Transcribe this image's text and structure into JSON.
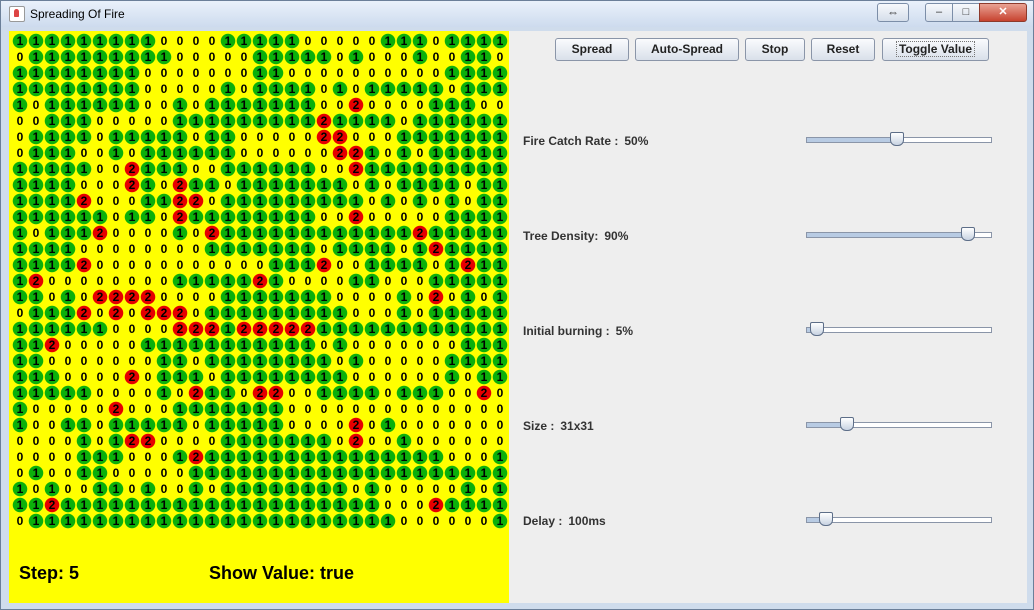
{
  "window": {
    "title": "Spreading Of Fire",
    "resize_glyph": "⇔",
    "minimize_glyph": "–",
    "maximize_glyph": "□",
    "close_glyph": "✕"
  },
  "toolbar": {
    "spread": "Spread",
    "auto_spread": "Auto-Spread",
    "stop": "Stop",
    "reset": "Reset",
    "toggle_value": "Toggle Value"
  },
  "settings": {
    "fire_catch_rate": {
      "label": "Fire Catch Rate :",
      "value": "50%",
      "fraction": 0.5
    },
    "tree_density": {
      "label": "Tree Density:",
      "value": "90%",
      "fraction": 0.9
    },
    "initial_burning": {
      "label": "Initial burning :",
      "value": "5%",
      "fraction": 0.05
    },
    "size": {
      "label": "Size :",
      "value": "31x31",
      "fraction": 0.22
    },
    "delay": {
      "label": "Delay :",
      "value": "100ms",
      "fraction": 0.1
    }
  },
  "status": {
    "step": "Step: 5",
    "show_value": "Show Value: true"
  },
  "colors": {
    "grid_background": "#ffff00",
    "tree": "#0bb00b",
    "burning": "#e60000"
  },
  "grid": [
    "1111111110000111110000011101111",
    "0111111111000001111101000100110",
    "1111111100000001100000000001111",
    "1111111100000101111010111110111",
    "1011111100101111111002000011100",
    "0011100000111111111211110111111",
    "0111101111101100000220001111111",
    "0111001011111100000022101011111",
    "1111100211100111111002111111111",
    "1111000210211011111110101111011",
    "1111200011220111111111010101011",
    "1111110110211111111002000001111",
    "1011120000102111111111111211111",
    "1111000000001111111011110121111",
    "1111200000000000111200111101211",
    "1200000000111112100001100011111",
    "1101022220000111111100001020101",
    "0111202022201111111110001011111",
    "1111110000222122222111111111111",
    "1120000011111111111010000000111",
    "1100000001101111111101000001111",
    "1110000201110111111110000001011",
    "1111100001021102200111101110020",
    "1000002000111111100000000000000",
    "1001101111101111100002010000000",
    "0000101220000111111102001000000",
    "0000111000121111111111111110001",
    "0100110000011111111111111111111",
    "1010011010010111111110100000101",
    "1121111111111111111111100021111",
    "0111111111111111111111110000001"
  ]
}
